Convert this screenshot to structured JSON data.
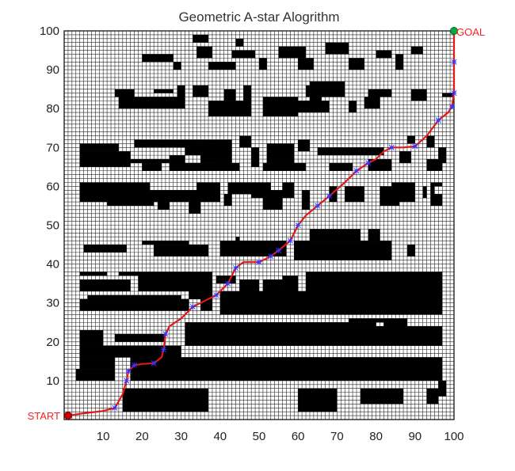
{
  "chart_data": {
    "type": "path-planning-grid",
    "title": "Geometric A-star Alogrithm",
    "xlim": [
      0,
      100
    ],
    "ylim": [
      0,
      100
    ],
    "xticks": [
      10,
      20,
      30,
      40,
      50,
      60,
      70,
      80,
      90,
      100
    ],
    "yticks": [
      10,
      20,
      30,
      40,
      50,
      60,
      70,
      80,
      90,
      100
    ],
    "grid": true,
    "start": {
      "label": "START",
      "x": 1,
      "y": 1,
      "color": "#cc0000"
    },
    "goal": {
      "label": "GOAL",
      "x": 100,
      "y": 100,
      "color": "#00aa44"
    },
    "label_color": "#ff2020",
    "path_color": "#e01818",
    "waypoint_color": "#3333ff",
    "obstacle_color": "#000000",
    "path": [
      [
        1,
        1
      ],
      [
        5,
        1.6
      ],
      [
        10,
        2.2
      ],
      [
        13,
        3
      ],
      [
        15,
        6.5
      ],
      [
        16,
        10
      ],
      [
        16.5,
        12.5
      ],
      [
        18,
        14
      ],
      [
        20,
        14.3
      ],
      [
        23,
        14.5
      ],
      [
        25,
        16
      ],
      [
        25.5,
        18
      ],
      [
        26,
        22
      ],
      [
        27,
        24
      ],
      [
        30,
        26
      ],
      [
        33,
        29
      ],
      [
        36,
        30.5
      ],
      [
        39,
        32
      ],
      [
        42,
        35
      ],
      [
        44,
        39
      ],
      [
        46,
        40.5
      ],
      [
        50,
        40.5
      ],
      [
        53,
        42
      ],
      [
        55,
        43.5
      ],
      [
        58,
        46
      ],
      [
        60,
        50
      ],
      [
        62,
        52.5
      ],
      [
        65,
        55
      ],
      [
        68,
        57.5
      ],
      [
        72,
        61
      ],
      [
        75,
        64
      ],
      [
        78,
        66
      ],
      [
        80,
        67
      ],
      [
        82,
        69
      ],
      [
        84,
        70
      ],
      [
        87,
        70
      ],
      [
        90,
        70.3
      ],
      [
        93,
        73
      ],
      [
        96,
        77
      ],
      [
        98.5,
        79
      ],
      [
        99.5,
        80.5
      ],
      [
        100,
        84
      ],
      [
        100,
        92
      ],
      [
        100,
        100
      ]
    ],
    "waypoints": [
      [
        13,
        3
      ],
      [
        16,
        10
      ],
      [
        16.5,
        12.5
      ],
      [
        18,
        14
      ],
      [
        23,
        14.5
      ],
      [
        25.5,
        18
      ],
      [
        26,
        22
      ],
      [
        33,
        29
      ],
      [
        39,
        32
      ],
      [
        42,
        35
      ],
      [
        44,
        39
      ],
      [
        50,
        40.5
      ],
      [
        53,
        42
      ],
      [
        55,
        43.5
      ],
      [
        58,
        46
      ],
      [
        60,
        50
      ],
      [
        65,
        55
      ],
      [
        68,
        57.5
      ],
      [
        75,
        64
      ],
      [
        78,
        66
      ],
      [
        84,
        70
      ],
      [
        90,
        70.3
      ],
      [
        96,
        77
      ],
      [
        99.5,
        80.5
      ],
      [
        100,
        84
      ],
      [
        100,
        92
      ]
    ],
    "obstacles": [
      [
        15,
        2,
        37,
        8
      ],
      [
        17,
        10,
        97,
        16
      ],
      [
        60,
        2,
        70,
        8
      ],
      [
        76,
        4,
        87,
        8
      ],
      [
        93,
        4,
        96,
        8
      ],
      [
        3,
        10,
        13,
        13
      ],
      [
        96,
        6,
        98,
        10
      ],
      [
        4,
        13,
        13,
        16
      ],
      [
        4,
        16,
        30,
        19
      ],
      [
        4,
        19,
        10,
        23
      ],
      [
        13,
        20,
        26,
        22
      ],
      [
        31,
        19,
        97,
        24
      ],
      [
        31,
        24,
        80,
        25
      ],
      [
        73,
        25,
        83,
        26
      ],
      [
        82,
        23,
        88,
        26
      ],
      [
        4,
        28,
        32,
        31
      ],
      [
        6,
        31,
        30,
        32
      ],
      [
        35,
        28,
        38,
        33
      ],
      [
        32,
        31,
        38,
        33
      ],
      [
        40,
        27,
        97,
        33
      ],
      [
        45,
        33,
        50,
        36
      ],
      [
        51,
        33,
        56,
        36
      ],
      [
        56,
        33,
        60,
        37
      ],
      [
        4,
        33,
        17,
        36
      ],
      [
        19,
        33,
        38,
        38
      ],
      [
        39,
        35,
        44,
        37
      ],
      [
        62,
        33,
        97,
        38
      ],
      [
        4,
        37,
        11,
        38
      ],
      [
        14,
        37,
        19,
        38
      ],
      [
        5,
        43,
        16,
        45
      ],
      [
        20,
        45,
        32,
        46
      ],
      [
        23,
        42,
        37,
        45
      ],
      [
        40,
        42,
        57,
        46
      ],
      [
        59,
        41,
        84,
        46
      ],
      [
        63,
        46,
        76,
        49
      ],
      [
        78,
        46,
        81,
        49
      ],
      [
        88,
        42,
        90,
        45
      ],
      [
        44,
        46,
        45,
        47
      ],
      [
        4,
        56,
        22,
        61
      ],
      [
        11,
        55,
        23,
        58
      ],
      [
        22,
        56,
        40,
        59
      ],
      [
        24,
        54,
        27,
        56
      ],
      [
        32,
        53,
        35,
        56
      ],
      [
        34,
        56,
        40,
        61
      ],
      [
        41,
        55,
        43,
        58
      ],
      [
        42,
        58,
        53,
        61
      ],
      [
        48,
        57,
        53,
        60
      ],
      [
        51,
        54,
        56,
        59
      ],
      [
        56,
        57,
        59,
        61
      ],
      [
        61,
        54,
        63,
        59
      ],
      [
        68,
        56,
        70,
        60
      ],
      [
        72,
        56,
        77,
        60
      ],
      [
        81,
        55,
        86,
        60
      ],
      [
        84,
        56,
        90,
        61
      ],
      [
        94,
        55,
        97,
        58
      ],
      [
        92,
        57,
        93,
        60
      ],
      [
        94,
        58,
        95,
        61
      ],
      [
        95,
        60,
        97,
        61
      ],
      [
        4,
        65,
        17,
        69
      ],
      [
        4,
        69,
        14,
        71
      ],
      [
        17,
        66,
        30,
        67
      ],
      [
        20,
        64,
        25,
        66
      ],
      [
        27,
        64,
        31,
        68
      ],
      [
        31,
        64,
        45,
        66
      ],
      [
        35,
        66,
        43,
        72
      ],
      [
        31,
        68,
        43,
        71
      ],
      [
        48,
        65,
        50,
        70
      ],
      [
        51,
        64,
        62,
        66
      ],
      [
        52,
        66,
        59,
        71
      ],
      [
        60,
        69,
        63,
        72
      ],
      [
        65,
        68,
        82,
        70
      ],
      [
        68,
        64,
        74,
        66
      ],
      [
        78,
        64,
        84,
        67
      ],
      [
        86,
        66,
        89,
        69
      ],
      [
        93,
        64,
        97,
        67
      ],
      [
        96,
        66,
        98,
        70
      ],
      [
        93,
        70,
        95,
        73
      ],
      [
        88,
        71,
        90,
        73
      ],
      [
        18,
        70,
        35,
        72
      ],
      [
        45,
        70,
        48,
        73
      ],
      [
        14,
        80,
        31,
        83
      ],
      [
        13,
        83,
        18,
        85
      ],
      [
        23,
        84,
        28,
        85
      ],
      [
        29,
        83,
        31,
        86
      ],
      [
        33,
        83,
        37,
        86
      ],
      [
        37,
        78,
        48,
        82
      ],
      [
        41,
        82,
        44,
        85
      ],
      [
        46,
        80,
        48,
        86
      ],
      [
        51,
        78,
        60,
        83
      ],
      [
        56,
        79,
        68,
        82
      ],
      [
        62,
        83,
        72,
        86
      ],
      [
        63,
        80,
        66,
        83
      ],
      [
        77,
        80,
        81,
        83
      ],
      [
        78,
        83,
        84,
        85
      ],
      [
        89,
        82,
        93,
        85
      ],
      [
        63,
        86,
        72,
        87
      ],
      [
        73,
        79,
        75,
        82
      ],
      [
        97,
        83,
        100,
        84
      ],
      [
        20,
        92,
        28,
        94
      ],
      [
        28,
        90,
        30,
        92
      ],
      [
        34,
        93,
        38,
        96
      ],
      [
        37,
        90,
        44,
        92
      ],
      [
        43,
        93,
        49,
        95
      ],
      [
        50,
        90,
        52,
        93
      ],
      [
        55,
        93,
        62,
        96
      ],
      [
        60,
        90,
        64,
        93
      ],
      [
        67,
        94,
        73,
        97
      ],
      [
        73,
        90,
        77,
        93
      ],
      [
        80,
        93,
        84,
        95
      ],
      [
        85,
        90,
        87,
        94
      ],
      [
        89,
        94,
        92,
        96
      ],
      [
        33,
        97,
        37,
        99
      ],
      [
        44,
        96,
        46,
        98
      ]
    ]
  }
}
